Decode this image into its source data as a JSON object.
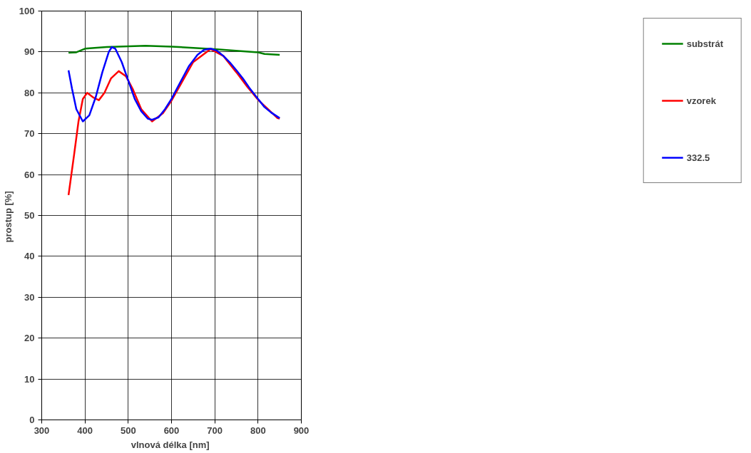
{
  "chart_data": {
    "type": "line",
    "xlabel": "vlnová délka  [nm]",
    "ylabel": "prostup  [%]",
    "xlim": [
      300,
      900
    ],
    "ylim": [
      0,
      100
    ],
    "xticks": [
      300,
      400,
      500,
      600,
      700,
      800,
      900
    ],
    "yticks": [
      0,
      10,
      20,
      30,
      40,
      50,
      60,
      70,
      80,
      90,
      100
    ],
    "grid": true,
    "legend": "right",
    "marker": "none",
    "line_style": "solid",
    "series": [
      {
        "name": "substrát",
        "color": "#008000",
        "x": [
          362,
          380,
          400,
          450,
          540,
          600,
          700,
          760,
          800,
          815,
          850
        ],
        "values": [
          89.8,
          89.9,
          90.8,
          91.2,
          91.5,
          91.3,
          90.7,
          90.2,
          89.9,
          89.5,
          89.3
        ]
      },
      {
        "name": "vzorek",
        "color": "#ff0000",
        "x": [
          362,
          375,
          385,
          395,
          405,
          420,
          432,
          445,
          460,
          478,
          495,
          510,
          530,
          555,
          580,
          600,
          650,
          690,
          720,
          750,
          775,
          800,
          825,
          845,
          850
        ],
        "values": [
          55,
          65,
          73,
          78.5,
          80,
          78.8,
          78.2,
          80,
          83.5,
          85.3,
          84,
          81,
          76,
          73,
          75,
          78.1,
          87.5,
          90.7,
          89,
          85,
          81.5,
          78.3,
          75.8,
          73.8,
          73.7
        ]
      },
      {
        "name": "332.5",
        "color": "#0000ff",
        "x": [
          362,
          370,
          380,
          395,
          410,
          425,
          440,
          455,
          462,
          470,
          485,
          500,
          515,
          530,
          545,
          555,
          570,
          585,
          600,
          620,
          640,
          660,
          675,
          690,
          705,
          720,
          735,
          750,
          765,
          780,
          800,
          815,
          830,
          850
        ],
        "values": [
          85.5,
          81,
          76,
          73,
          74.5,
          79,
          85,
          90,
          91.2,
          90.8,
          87.5,
          83,
          78.5,
          75.5,
          73.7,
          73.4,
          74,
          76,
          78.5,
          82.5,
          86.5,
          89.3,
          90.5,
          90.8,
          90.3,
          89,
          87.4,
          85.5,
          83.5,
          81.2,
          78.5,
          76.5,
          75.2,
          73.8
        ]
      }
    ]
  }
}
